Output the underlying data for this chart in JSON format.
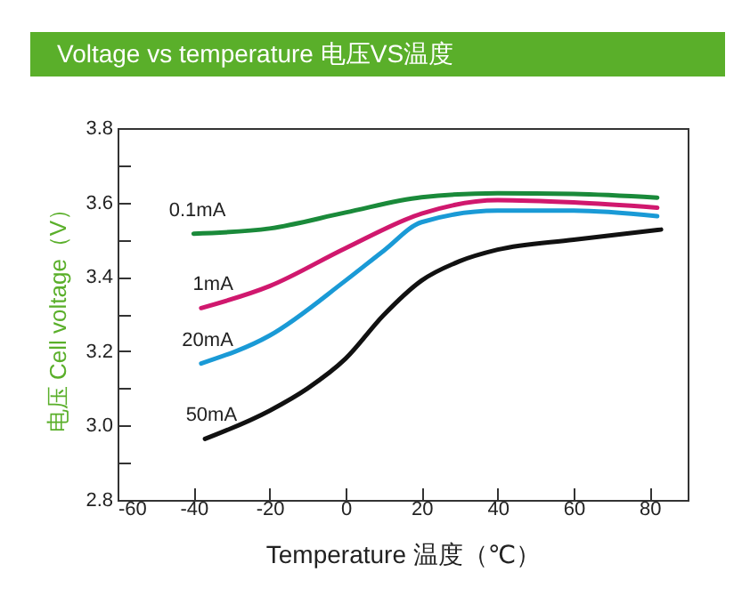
{
  "chart_data": {
    "type": "line",
    "title": "Voltage vs temperature   电压VS温度",
    "xlabel": "Temperature 温度（℃）",
    "ylabel": "电压 Cell voltage（V）",
    "xlim": [
      -60,
      90
    ],
    "xticks": [
      -60,
      -40,
      -20,
      0,
      20,
      40,
      60,
      80
    ],
    "ylim": [
      2.8,
      3.8
    ],
    "yticks": [
      2.8,
      {
        "value": 2.9,
        "label": null
      },
      {
        "value": 3.0,
        "label": "3.0"
      },
      {
        "value": 3.1,
        "label": null
      },
      3.2,
      {
        "value": 3.3,
        "label": null
      },
      3.4,
      {
        "value": 3.5,
        "label": null
      },
      3.6,
      {
        "value": 3.7,
        "label": null
      },
      3.8
    ],
    "grid": false,
    "legend": false,
    "marker": "none",
    "line_style": "solid",
    "series": [
      {
        "name": "0.1mA",
        "color": "#1a8a3a",
        "x": [
          -40,
          -20,
          0,
          20,
          40,
          60,
          82
        ],
        "values": [
          3.516,
          3.53,
          3.573,
          3.614,
          3.625,
          3.623,
          3.613
        ]
      },
      {
        "name": "1mA",
        "color": "#d0186e",
        "x": [
          -38,
          -20,
          0,
          20,
          40,
          60,
          82
        ],
        "values": [
          3.316,
          3.375,
          3.477,
          3.57,
          3.606,
          3.6,
          3.586
        ]
      },
      {
        "name": "20mA",
        "color": "#1a9ad6",
        "x": [
          -38,
          -20,
          0,
          10,
          20,
          40,
          60,
          82
        ],
        "values": [
          3.167,
          3.242,
          3.39,
          3.47,
          3.547,
          3.578,
          3.578,
          3.563
        ]
      },
      {
        "name": "50mA",
        "color": "#111111",
        "x": [
          -37,
          -20,
          -10,
          0,
          10,
          20,
          30,
          40,
          60,
          83
        ],
        "values": [
          2.964,
          3.04,
          3.1,
          3.18,
          3.297,
          3.39,
          3.442,
          3.473,
          3.5,
          3.527
        ]
      }
    ]
  }
}
